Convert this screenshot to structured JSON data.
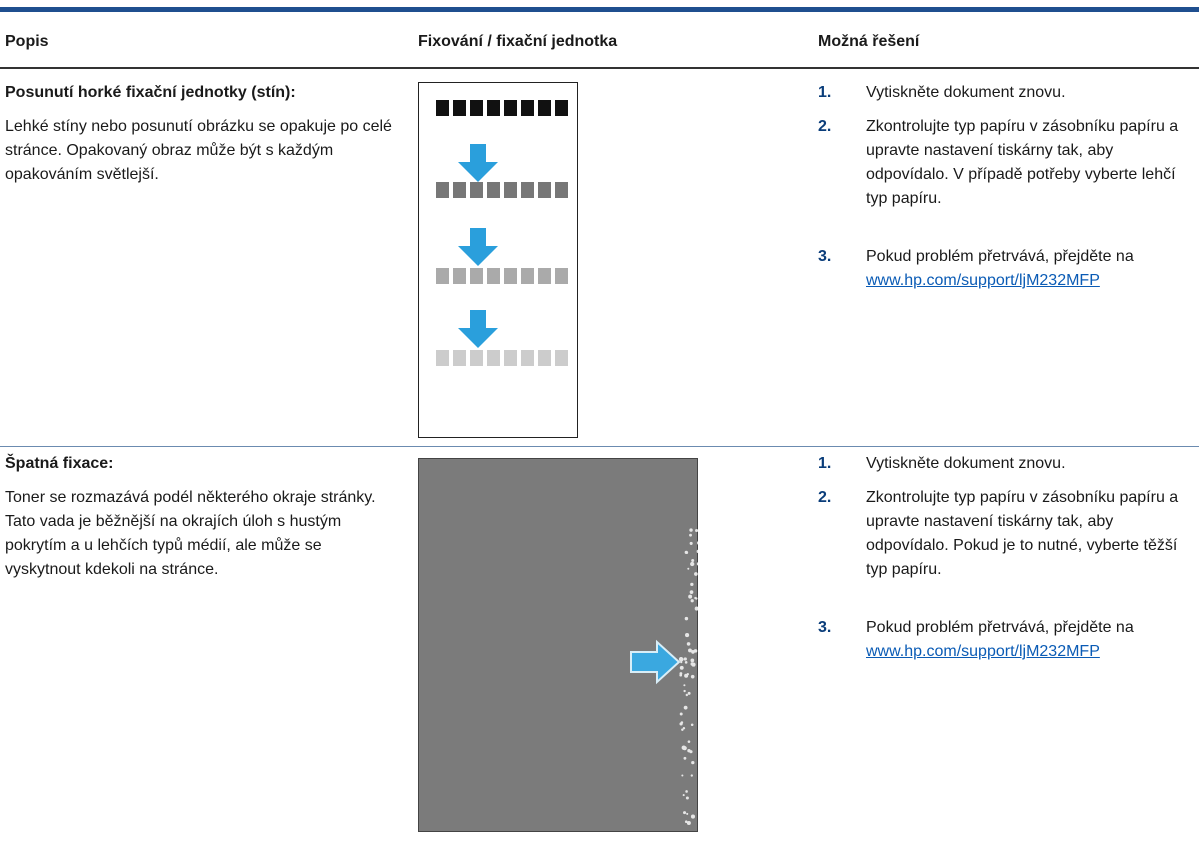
{
  "table": {
    "headers": [
      "Popis",
      "Fixování / fixační jednotka",
      "Možná řešení"
    ],
    "rows": [
      {
        "title": "Posunutí horké fixační jednotky (stín):",
        "description": "Lehké stíny nebo posunutí obrázku se opakuje po celé stránce. Opakovaný obraz může být s každým opakováním světlejší.",
        "steps": [
          {
            "number": "1.",
            "text": "Vytiskněte dokument znovu."
          },
          {
            "number": "2.",
            "text": "Zkontrolujte typ papíru v zásobníku papíru a upravte nastavení tiskárny tak, aby odpovídalo. V případě potřeby vyberte lehčí typ papíru."
          },
          {
            "number": "3.",
            "text": "Pokud problém přetrvává, přejděte na",
            "link": "www.hp.com/support/ljM232MFP"
          }
        ]
      },
      {
        "title": "Špatná fixace:",
        "description": "Toner se rozmazává podél některého okraje stránky. Tato vada je běžnější na okrajích úloh s hustým pokrytím a u lehčích typů médií, ale může se vyskytnout kdekoli na stránce.",
        "steps": [
          {
            "number": "1.",
            "text": "Vytiskněte dokument znovu."
          },
          {
            "number": "2.",
            "text": "Zkontrolujte typ papíru v zásobníku papíru a upravte nastavení tiskárny tak, aby odpovídalo. Pokud je to nutné, vyberte těžší typ papíru."
          },
          {
            "number": "3.",
            "text": "Pokud problém přetrvává, přejděte na",
            "link": "www.hp.com/support/ljM232MFP"
          }
        ]
      }
    ]
  }
}
